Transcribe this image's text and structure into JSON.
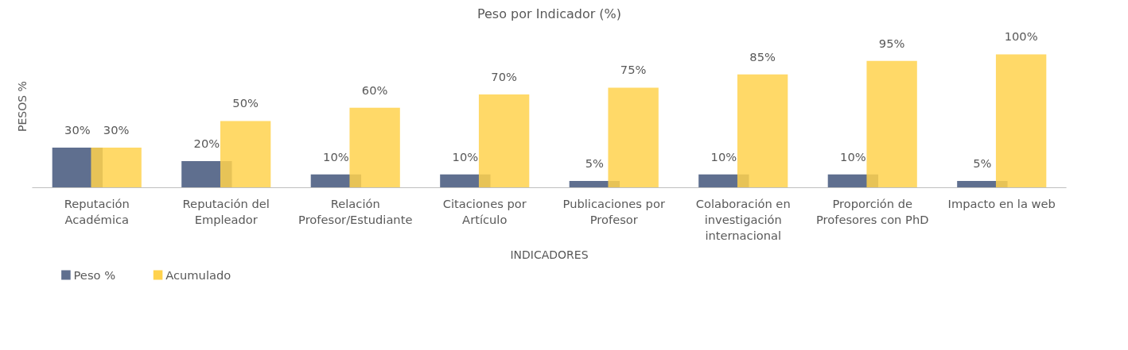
{
  "chart_data": {
    "type": "bar",
    "title": "Peso por Indicador (%)",
    "xlabel": "INDICADORES",
    "ylabel": "PESOS %",
    "categories": [
      "Reputación Académica",
      "Reputación del Empleador",
      "Relación Profesor/Estudiante",
      "Citaciones por Artículo",
      "Publicaciones por Profesor",
      "Colaboración en investigación internacional",
      "Proporción de Profesores con PhD",
      "Impacto en la web"
    ],
    "series": [
      {
        "name": "Peso %",
        "color": "#5f6f8f",
        "values": [
          30,
          20,
          10,
          10,
          5,
          10,
          10,
          5
        ],
        "value_labels": [
          "30%",
          "20%",
          "10%",
          "10%",
          "5%",
          "10%",
          "10%",
          "5%"
        ]
      },
      {
        "name": "Acumulado",
        "color": "#ffd24d",
        "values": [
          30,
          50,
          60,
          70,
          75,
          85,
          95,
          100
        ],
        "value_labels": [
          "30%",
          "50%",
          "60%",
          "70%",
          "75%",
          "85%",
          "95%",
          "100%"
        ]
      }
    ],
    "legend": "bottom left",
    "grid": false
  }
}
